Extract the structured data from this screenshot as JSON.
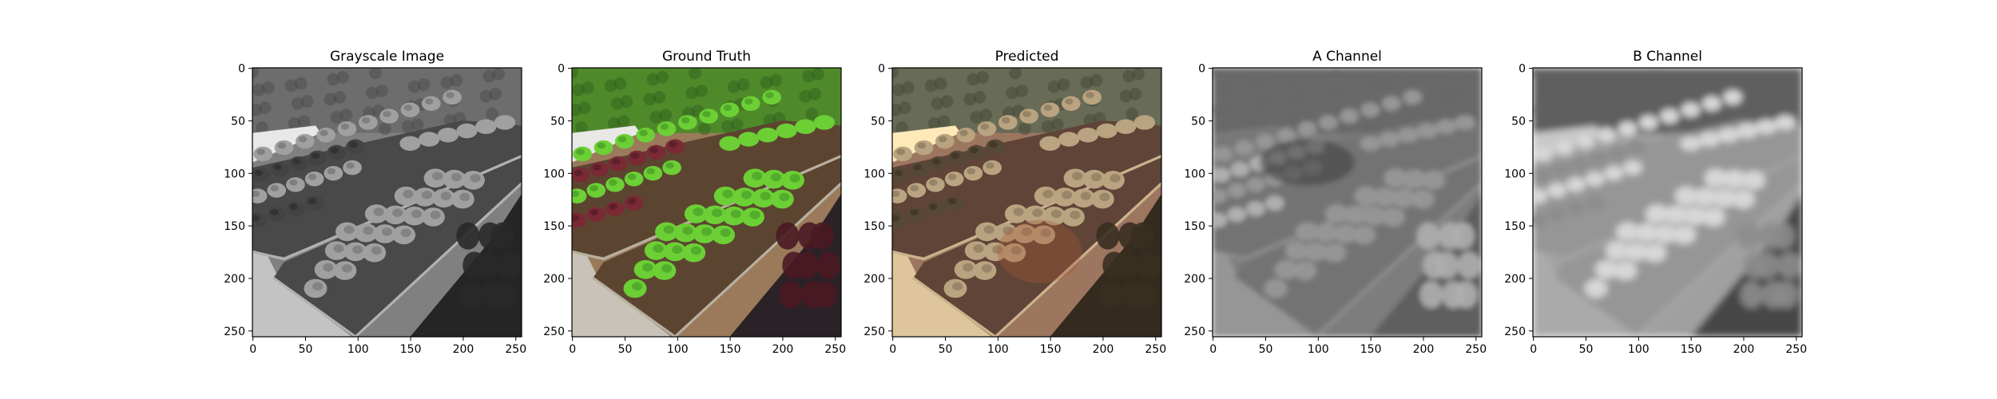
{
  "figure": {
    "background": "#ffffff",
    "panels": [
      {
        "id": "gray",
        "title": "Grayscale Image",
        "render_mode": "grayscale",
        "icon": "photo-grayscale-lettuce-garden"
      },
      {
        "id": "truth",
        "title": "Ground Truth",
        "render_mode": "color",
        "icon": "photo-color-lettuce-garden"
      },
      {
        "id": "pred",
        "title": "Predicted",
        "render_mode": "predicted",
        "icon": "photo-predicted-lettuce-garden"
      },
      {
        "id": "achan",
        "title": "A Channel",
        "render_mode": "achannel",
        "icon": "photo-a-channel-map"
      },
      {
        "id": "bchan",
        "title": "B Channel",
        "render_mode": "bchannel",
        "icon": "photo-b-channel-map"
      }
    ],
    "x_ticks": [
      "0",
      "50",
      "100",
      "150",
      "200",
      "250"
    ],
    "y_ticks": [
      "0",
      "50",
      "100",
      "150",
      "200",
      "250"
    ],
    "tick_values": [
      0,
      50,
      100,
      150,
      200,
      250
    ],
    "axis_range": [
      0,
      256
    ]
  },
  "colors": {
    "hedge_truth": "#4f8a2a",
    "lettuce_green": "#6ccf35",
    "lettuce_red": "#7a2a35",
    "soil": "#5c4530",
    "mulch": "#9a7a5a",
    "path": "#c8c2b8",
    "frame": "#000000"
  }
}
